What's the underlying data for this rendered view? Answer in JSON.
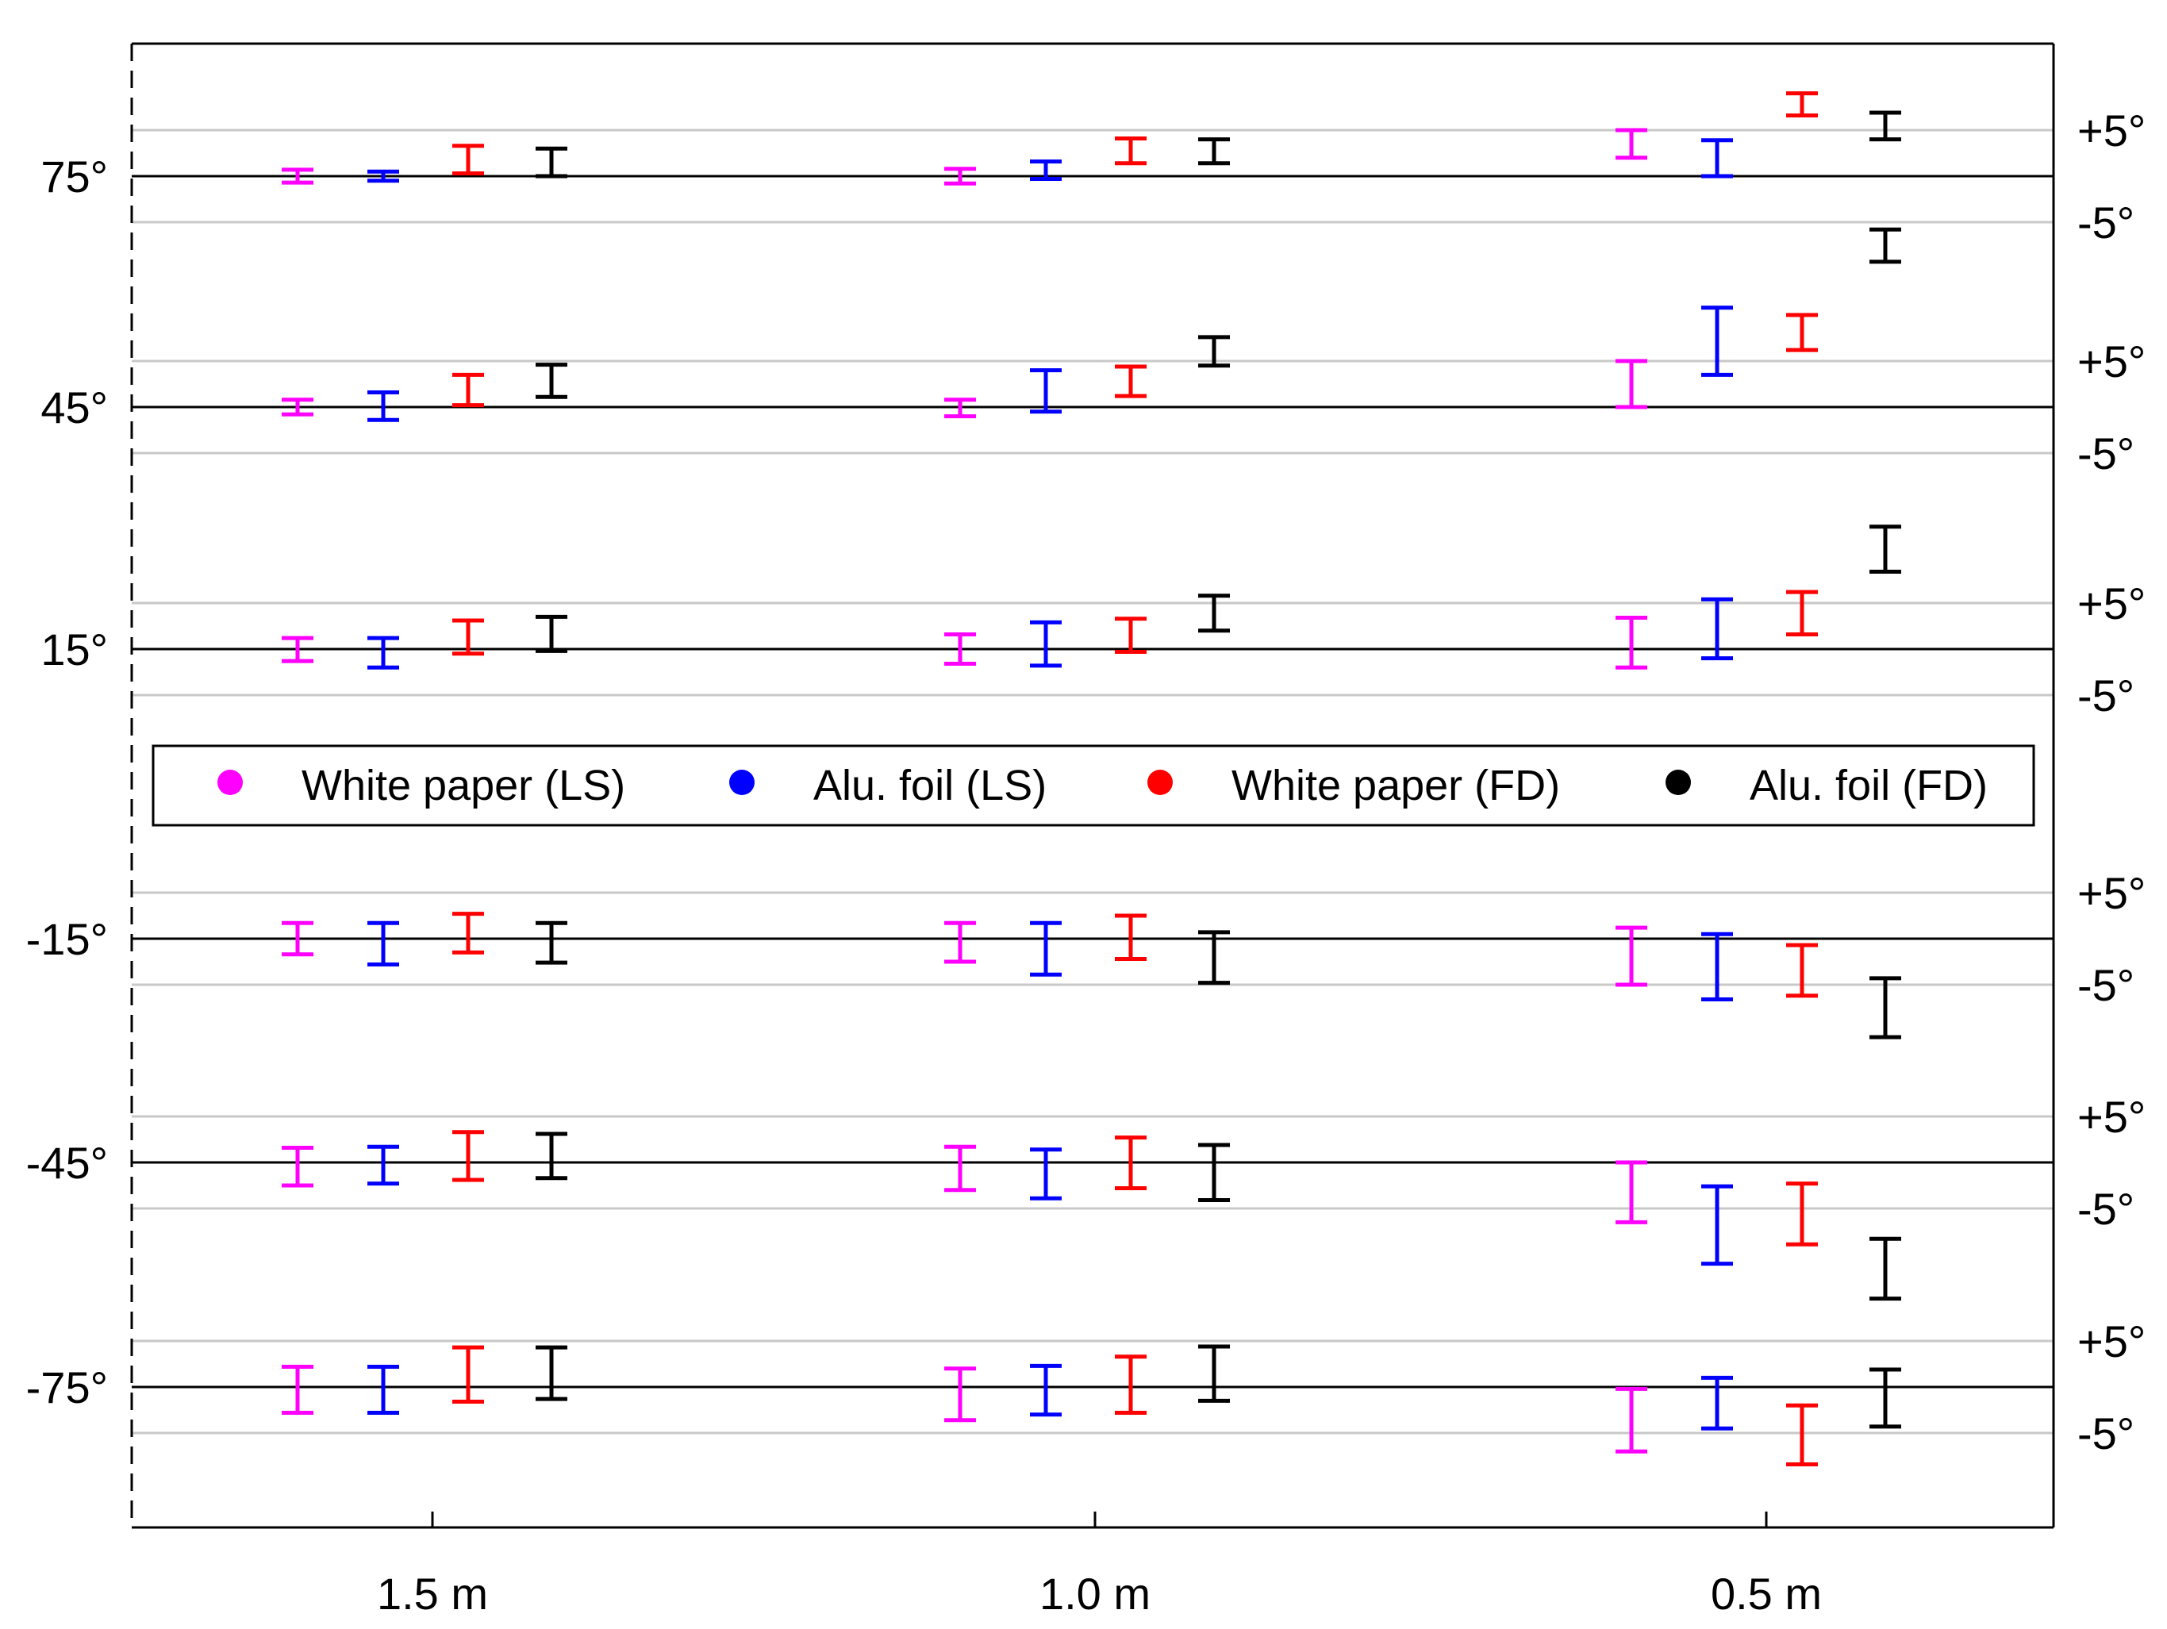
{
  "chart_data": {
    "type": "errorbar",
    "title": "",
    "xlabel": "",
    "ylabel": "",
    "x_categories": [
      "1.5 m",
      "1.0 m",
      "0.5 m"
    ],
    "tolerance_labels": {
      "upper": "+5°",
      "lower": "-5°"
    },
    "panels": [
      {
        "reference": 75,
        "label": "75°"
      },
      {
        "reference": 45,
        "label": "45°"
      },
      {
        "reference": 15,
        "label": "15°"
      },
      {
        "reference": -15,
        "label": "-15°"
      },
      {
        "reference": -45,
        "label": "-45°"
      },
      {
        "reference": -75,
        "label": "-75°"
      }
    ],
    "series": [
      {
        "name": "White paper (LS)",
        "color": "#ff00ff",
        "points": [
          {
            "distance": "1.5 m",
            "reference": 75,
            "low": -0.7,
            "high": 0.7
          },
          {
            "distance": "1.0 m",
            "reference": 75,
            "low": -0.8,
            "high": 0.8
          },
          {
            "distance": "0.5 m",
            "reference": 75,
            "low": 2.0,
            "high": 5.0
          },
          {
            "distance": "1.5 m",
            "reference": 45,
            "low": -0.8,
            "high": 0.8
          },
          {
            "distance": "1.0 m",
            "reference": 45,
            "low": -1.0,
            "high": 0.8
          },
          {
            "distance": "0.5 m",
            "reference": 45,
            "low": 0.0,
            "high": 5.0
          },
          {
            "distance": "1.5 m",
            "reference": 15,
            "low": -1.3,
            "high": 1.2
          },
          {
            "distance": "1.0 m",
            "reference": 15,
            "low": -1.6,
            "high": 1.6
          },
          {
            "distance": "0.5 m",
            "reference": 15,
            "low": -2.0,
            "high": 3.4
          },
          {
            "distance": "1.5 m",
            "reference": -15,
            "low": -1.7,
            "high": 1.7
          },
          {
            "distance": "1.0 m",
            "reference": -15,
            "low": -2.5,
            "high": 1.7
          },
          {
            "distance": "0.5 m",
            "reference": -15,
            "low": -5.0,
            "high": 1.2
          },
          {
            "distance": "1.5 m",
            "reference": -45,
            "low": -2.5,
            "high": 1.6
          },
          {
            "distance": "1.0 m",
            "reference": -45,
            "low": -3.0,
            "high": 1.7
          },
          {
            "distance": "0.5 m",
            "reference": -45,
            "low": -6.5,
            "high": 0.0
          },
          {
            "distance": "1.5 m",
            "reference": -75,
            "low": -2.8,
            "high": 2.2
          },
          {
            "distance": "1.0 m",
            "reference": -75,
            "low": -3.6,
            "high": 2.0
          },
          {
            "distance": "0.5 m",
            "reference": -75,
            "low": -7.0,
            "high": -0.2
          }
        ]
      },
      {
        "name": "Alu. foil (LS)",
        "color": "#0000ff",
        "points": [
          {
            "distance": "1.5 m",
            "reference": 75,
            "low": -0.5,
            "high": 0.5
          },
          {
            "distance": "1.0 m",
            "reference": 75,
            "low": -0.3,
            "high": 1.6
          },
          {
            "distance": "0.5 m",
            "reference": 75,
            "low": 0.0,
            "high": 3.9
          },
          {
            "distance": "1.5 m",
            "reference": 45,
            "low": -1.4,
            "high": 1.6
          },
          {
            "distance": "1.0 m",
            "reference": 45,
            "low": -0.5,
            "high": 4.0
          },
          {
            "distance": "0.5 m",
            "reference": 45,
            "low": 3.5,
            "high": 10.8
          },
          {
            "distance": "1.5 m",
            "reference": 15,
            "low": -2.0,
            "high": 1.2
          },
          {
            "distance": "1.0 m",
            "reference": 15,
            "low": -1.8,
            "high": 2.9
          },
          {
            "distance": "0.5 m",
            "reference": 15,
            "low": -1.0,
            "high": 5.4
          },
          {
            "distance": "1.5 m",
            "reference": -15,
            "low": -2.8,
            "high": 1.7
          },
          {
            "distance": "1.0 m",
            "reference": -15,
            "low": -3.9,
            "high": 1.7
          },
          {
            "distance": "0.5 m",
            "reference": -15,
            "low": -6.6,
            "high": 0.5
          },
          {
            "distance": "1.5 m",
            "reference": -45,
            "low": -2.3,
            "high": 1.7
          },
          {
            "distance": "1.0 m",
            "reference": -45,
            "low": -3.9,
            "high": 1.4
          },
          {
            "distance": "0.5 m",
            "reference": -45,
            "low": -11.0,
            "high": -2.6
          },
          {
            "distance": "1.5 m",
            "reference": -75,
            "low": -2.8,
            "high": 2.2
          },
          {
            "distance": "1.0 m",
            "reference": -75,
            "low": -3.0,
            "high": 2.3
          },
          {
            "distance": "0.5 m",
            "reference": -75,
            "low": -4.5,
            "high": 1.0
          }
        ]
      },
      {
        "name": "White paper (FD)",
        "color": "#ff0000",
        "points": [
          {
            "distance": "1.5 m",
            "reference": 75,
            "low": 0.3,
            "high": 3.3
          },
          {
            "distance": "1.0 m",
            "reference": 75,
            "low": 1.4,
            "high": 4.1
          },
          {
            "distance": "0.5 m",
            "reference": 75,
            "low": 6.6,
            "high": 9.0
          },
          {
            "distance": "1.5 m",
            "reference": 45,
            "low": 0.2,
            "high": 3.5
          },
          {
            "distance": "1.0 m",
            "reference": 45,
            "low": 1.2,
            "high": 4.4
          },
          {
            "distance": "0.5 m",
            "reference": 45,
            "low": 6.2,
            "high": 10.0
          },
          {
            "distance": "1.5 m",
            "reference": 15,
            "low": -0.5,
            "high": 3.1
          },
          {
            "distance": "1.0 m",
            "reference": 15,
            "low": -0.3,
            "high": 3.3
          },
          {
            "distance": "0.5 m",
            "reference": 15,
            "low": 1.6,
            "high": 6.2
          },
          {
            "distance": "1.5 m",
            "reference": -15,
            "low": -1.5,
            "high": 2.7
          },
          {
            "distance": "1.0 m",
            "reference": -15,
            "low": -2.2,
            "high": 2.5
          },
          {
            "distance": "0.5 m",
            "reference": -15,
            "low": -6.2,
            "high": -0.7
          },
          {
            "distance": "1.5 m",
            "reference": -45,
            "low": -1.9,
            "high": 3.3
          },
          {
            "distance": "1.0 m",
            "reference": -45,
            "low": -2.8,
            "high": 2.7
          },
          {
            "distance": "0.5 m",
            "reference": -45,
            "low": -8.9,
            "high": -2.3
          },
          {
            "distance": "1.5 m",
            "reference": -75,
            "low": -1.6,
            "high": 4.3
          },
          {
            "distance": "1.0 m",
            "reference": -75,
            "low": -2.8,
            "high": 3.3
          },
          {
            "distance": "0.5 m",
            "reference": -75,
            "low": -8.4,
            "high": -2.0
          }
        ]
      },
      {
        "name": "Alu. foil (FD)",
        "color": "#000000",
        "points": [
          {
            "distance": "1.5 m",
            "reference": 75,
            "low": 0.0,
            "high": 3.0
          },
          {
            "distance": "1.0 m",
            "reference": 75,
            "low": 1.4,
            "high": 4.0
          },
          {
            "distance": "0.5 m",
            "reference": 75,
            "low": 4.0,
            "high": 6.9
          },
          {
            "distance": "1.5 m",
            "reference": 45,
            "low": 1.1,
            "high": 4.6
          },
          {
            "distance": "1.0 m",
            "reference": 45,
            "low": 4.5,
            "high": 7.6
          },
          {
            "distance": "0.5 m",
            "reference": 75,
            "low": -9.3,
            "high": -5.8
          },
          {
            "distance": "1.5 m",
            "reference": 15,
            "low": -0.2,
            "high": 3.5
          },
          {
            "distance": "1.0 m",
            "reference": 15,
            "low": 2.0,
            "high": 5.8
          },
          {
            "distance": "0.5 m",
            "reference": 15,
            "low": 8.4,
            "high": 13.3
          },
          {
            "distance": "1.5 m",
            "reference": -15,
            "low": -2.6,
            "high": 1.7
          },
          {
            "distance": "1.0 m",
            "reference": -15,
            "low": -4.8,
            "high": 0.7
          },
          {
            "distance": "0.5 m",
            "reference": -15,
            "low": -10.7,
            "high": -4.3
          },
          {
            "distance": "1.5 m",
            "reference": -45,
            "low": -1.7,
            "high": 3.1
          },
          {
            "distance": "1.0 m",
            "reference": -45,
            "low": -4.1,
            "high": 1.9
          },
          {
            "distance": "0.5 m",
            "reference": -45,
            "low": -14.8,
            "high": -8.3
          },
          {
            "distance": "1.5 m",
            "reference": -75,
            "low": -1.3,
            "high": 4.3
          },
          {
            "distance": "1.0 m",
            "reference": -75,
            "low": -1.5,
            "high": 4.4
          },
          {
            "distance": "0.5 m",
            "reference": -75,
            "low": -4.3,
            "high": 1.9
          }
        ]
      }
    ],
    "legend": {
      "position": "center",
      "entries": [
        "White paper (LS)",
        "Alu. foil (LS)",
        "White paper (FD)",
        "Alu. foil (FD)"
      ]
    },
    "grid": false
  },
  "colors": {
    "reference_line": "#000000",
    "tolerance_line": "#c8c8c8",
    "axes": "#000000"
  }
}
